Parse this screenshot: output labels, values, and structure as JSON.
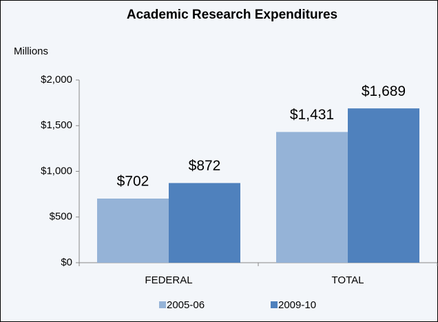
{
  "chart_data": {
    "type": "bar",
    "title": "Academic Research Expenditures",
    "y_axis_label": "Millions",
    "categories": [
      "FEDERAL",
      "TOTAL"
    ],
    "series": [
      {
        "name": "2005-06",
        "color": "#95b3d7",
        "values": [
          702,
          1431
        ],
        "value_labels": [
          "$702",
          "$1,431"
        ]
      },
      {
        "name": "2009-10",
        "color": "#4f81bd",
        "values": [
          872,
          1689
        ],
        "value_labels": [
          "$872",
          "$1,689"
        ]
      }
    ],
    "ylim": [
      0,
      2000
    ],
    "yticks": [
      {
        "value": 0,
        "label": "$0"
      },
      {
        "value": 500,
        "label": "$500"
      },
      {
        "value": 1000,
        "label": "$1,000"
      },
      {
        "value": 1500,
        "label": "$1,500"
      },
      {
        "value": 2000,
        "label": "$2,000"
      }
    ],
    "grid": false,
    "legend": "bottom"
  }
}
